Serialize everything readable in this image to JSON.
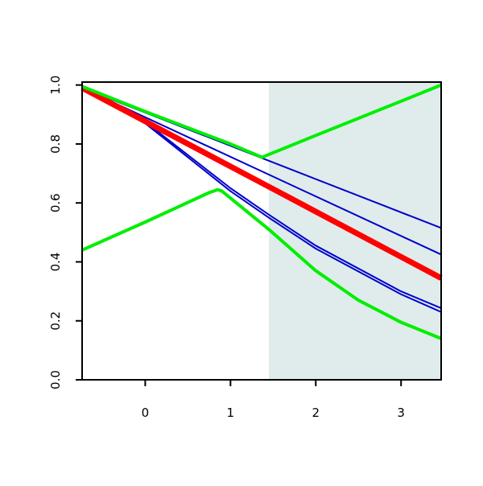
{
  "chart_data": {
    "type": "line",
    "xlim": [
      -0.74,
      3.47
    ],
    "ylim": [
      0,
      1.01
    ],
    "xticks": [
      0,
      1,
      2,
      3
    ],
    "yticks": [
      {
        "value": 0,
        "label": "0.0"
      },
      {
        "value": 0.2,
        "label": "0.2"
      },
      {
        "value": 0.4,
        "label": "0.4"
      },
      {
        "value": 0.6,
        "label": "0.6"
      },
      {
        "value": 0.8,
        "label": "0.8"
      },
      {
        "value": 1,
        "label": "1.0"
      }
    ],
    "shaded_region": {
      "xmin": 1.45,
      "xmax": 3.47,
      "color": "#dfeceb"
    },
    "series": [
      {
        "color": "#0000cc",
        "linewidth": 2,
        "x": [
          -0.74,
          1.45,
          3.47
        ],
        "values": [
          0.99,
          0.743,
          0.515
        ]
      },
      {
        "color": "#0000cc",
        "linewidth": 2,
        "x": [
          -0.74,
          1.45,
          3.47
        ],
        "values": [
          0.99,
          0.696,
          0.425
        ]
      },
      {
        "color": "#0000cc",
        "linewidth": 2,
        "x": [
          -0.74,
          0,
          1,
          1.45,
          2,
          3,
          3.47
        ],
        "values": [
          0.99,
          0.875,
          0.65,
          0.56,
          0.455,
          0.3,
          0.243
        ]
      },
      {
        "color": "#0000cc",
        "linewidth": 2,
        "x": [
          -0.74,
          0,
          1,
          1.45,
          2,
          3,
          3.47
        ],
        "values": [
          0.99,
          0.87,
          0.64,
          0.55,
          0.445,
          0.29,
          0.23
        ]
      },
      {
        "color": "#ff0000",
        "linewidth": 7,
        "x": [
          -0.74,
          1.45,
          3.47
        ],
        "values": [
          0.99,
          0.655,
          0.345
        ]
      },
      {
        "color": "#00ee00",
        "linewidth": 4,
        "x": [
          -0.74,
          0,
          1,
          1.37,
          2,
          3,
          3.47
        ],
        "values": [
          0.995,
          0.91,
          0.8,
          0.755,
          0.829,
          0.945,
          1.0
        ]
      },
      {
        "color": "#00ee00",
        "linewidth": 4,
        "x": [
          -0.74,
          0,
          0.75,
          0.85,
          0.9,
          1.45,
          2,
          2.5,
          3,
          3.47
        ],
        "values": [
          0.44,
          0.535,
          0.635,
          0.645,
          0.64,
          0.51,
          0.37,
          0.27,
          0.195,
          0.14
        ]
      }
    ]
  }
}
